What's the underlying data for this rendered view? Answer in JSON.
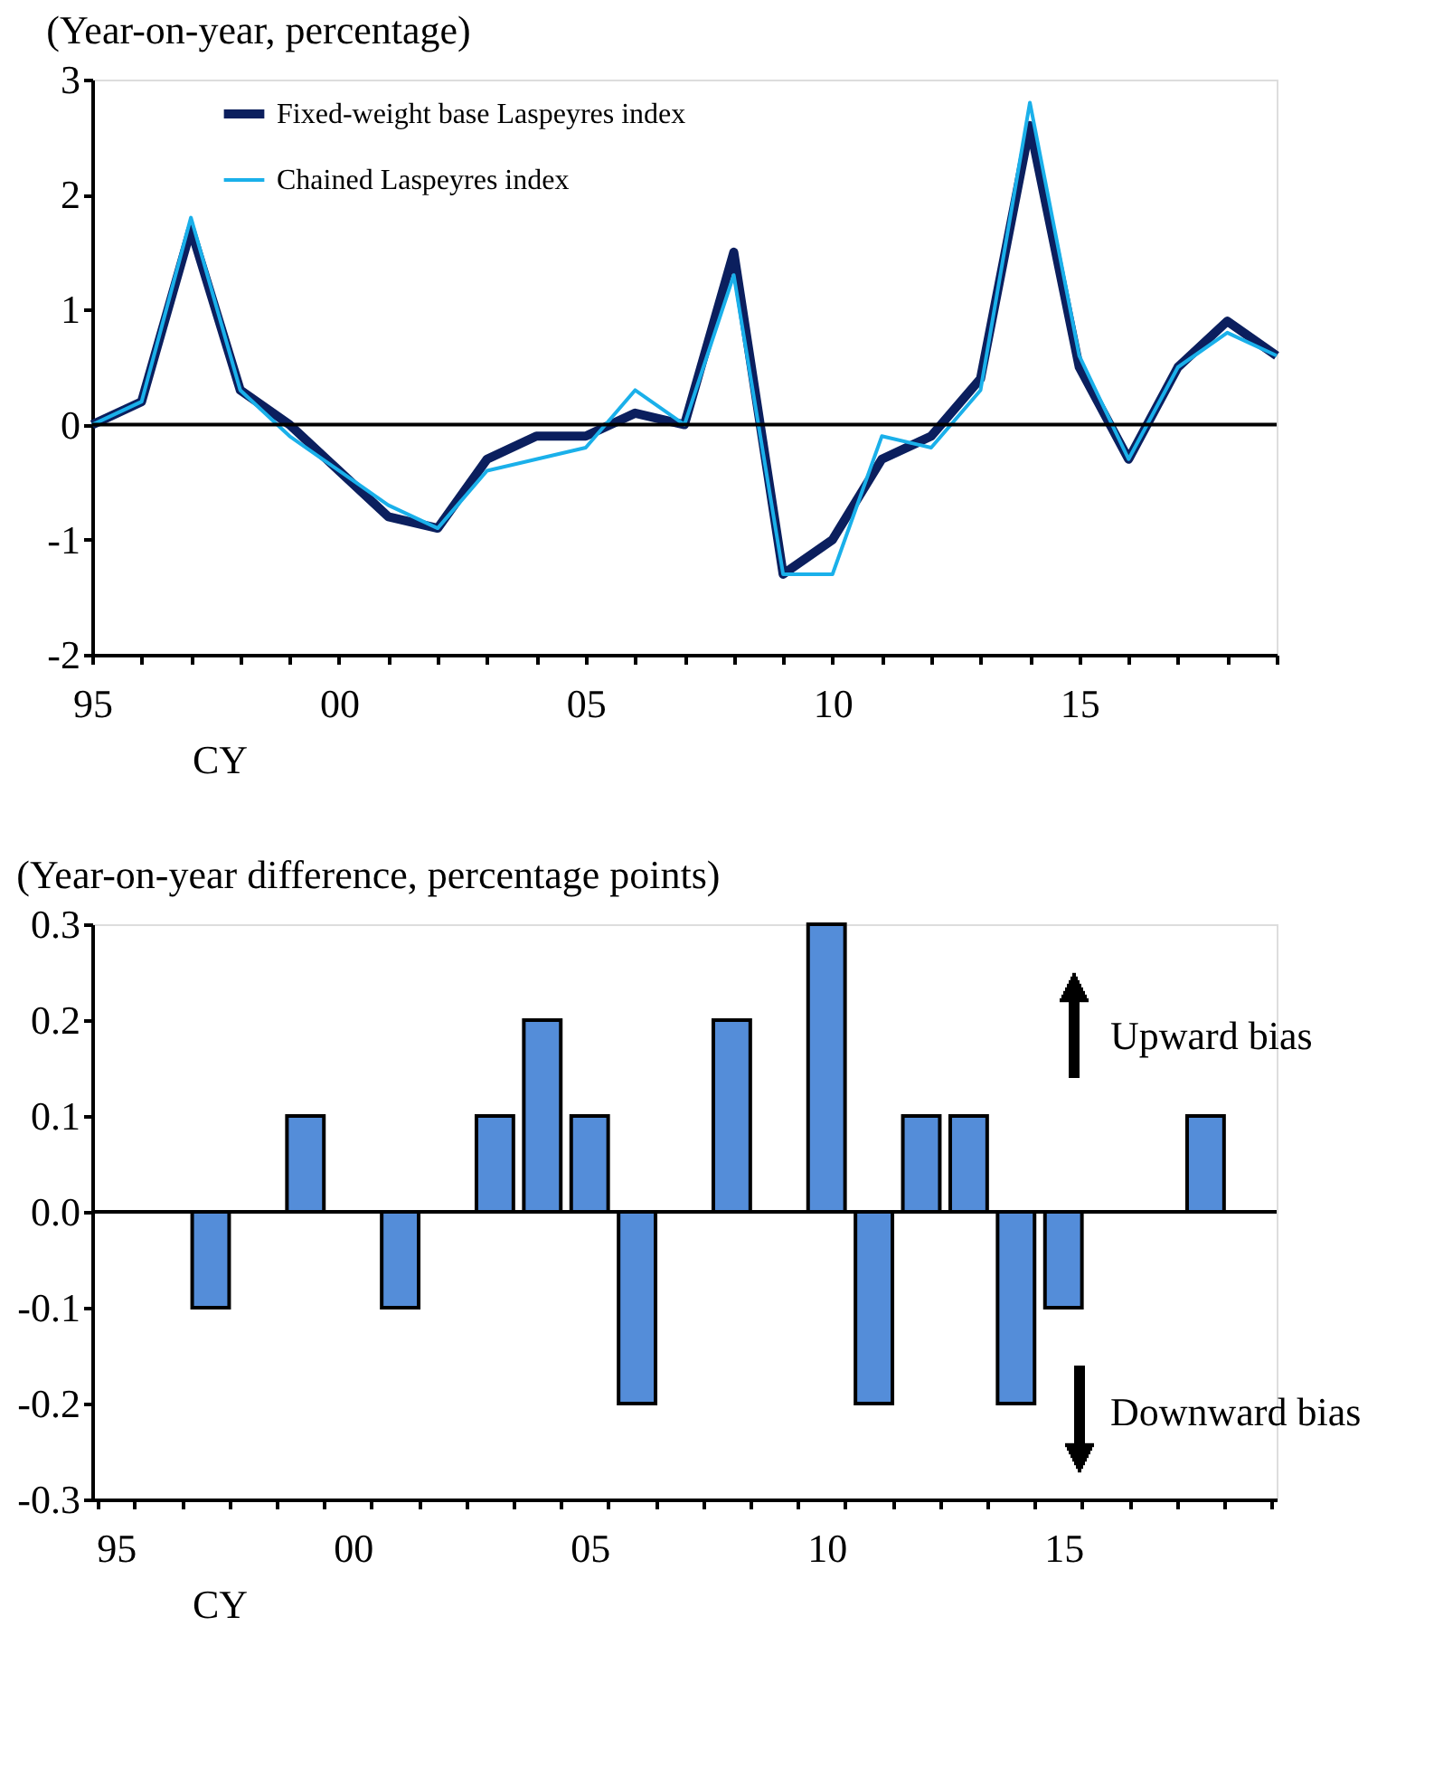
{
  "chart_data": [
    {
      "type": "line",
      "title": "(Year-on-year, percentage)",
      "xlabel": "CY",
      "x": [
        1995,
        1996,
        1997,
        1998,
        1999,
        2000,
        2001,
        2002,
        2003,
        2004,
        2005,
        2006,
        2007,
        2008,
        2009,
        2010,
        2011,
        2012,
        2013,
        2014,
        2015,
        2016,
        2017,
        2018,
        2019
      ],
      "series": [
        {
          "name": "Fixed-weight base Laspeyres index",
          "color": "#0b1f5e",
          "values": [
            0,
            0.2,
            1.7,
            0.3,
            0.0,
            -0.4,
            -0.8,
            -0.9,
            -0.3,
            -0.1,
            -0.1,
            0.1,
            0.0,
            1.5,
            -1.3,
            -1.0,
            -0.3,
            -0.1,
            0.4,
            2.6,
            0.5,
            -0.3,
            0.5,
            0.9,
            0.6
          ]
        },
        {
          "name": "Chained Laspeyres index",
          "color": "#1ab0ea",
          "values": [
            0,
            0.2,
            1.8,
            0.3,
            -0.1,
            -0.4,
            -0.7,
            -0.9,
            -0.4,
            -0.3,
            -0.2,
            0.3,
            0.0,
            1.3,
            -1.3,
            -1.3,
            -0.1,
            -0.2,
            0.3,
            2.8,
            0.6,
            -0.3,
            0.5,
            0.8,
            0.6
          ]
        }
      ],
      "xlim": [
        1995,
        2019
      ],
      "xticks": [
        {
          "value": 1995,
          "label": "95"
        },
        {
          "value": 1996,
          "label": null
        },
        {
          "value": 1997,
          "label": null
        },
        {
          "value": 1998,
          "label": null
        },
        {
          "value": 1999,
          "label": null
        },
        {
          "value": 2000,
          "label": "00"
        },
        {
          "value": 2001,
          "label": null
        },
        {
          "value": 2002,
          "label": null
        },
        {
          "value": 2003,
          "label": null
        },
        {
          "value": 2004,
          "label": null
        },
        {
          "value": 2005,
          "label": "05"
        },
        {
          "value": 2006,
          "label": null
        },
        {
          "value": 2007,
          "label": null
        },
        {
          "value": 2008,
          "label": null
        },
        {
          "value": 2009,
          "label": null
        },
        {
          "value": 2010,
          "label": "10"
        },
        {
          "value": 2011,
          "label": null
        },
        {
          "value": 2012,
          "label": null
        },
        {
          "value": 2013,
          "label": null
        },
        {
          "value": 2014,
          "label": null
        },
        {
          "value": 2015,
          "label": "15"
        },
        {
          "value": 2016,
          "label": null
        },
        {
          "value": 2017,
          "label": null
        },
        {
          "value": 2018,
          "label": null
        },
        {
          "value": 2019,
          "label": null
        }
      ],
      "ylim": [
        -2,
        3
      ],
      "yticks": [
        -2,
        -1,
        0,
        1,
        2,
        3
      ],
      "ref_lines": [
        {
          "axis": "y",
          "value": 0,
          "color": "#000000"
        }
      ],
      "grid": false,
      "legend": "top left",
      "marker": "none",
      "line_style": "solid"
    },
    {
      "type": "bar",
      "title": "(Year-on-year difference, percentage points)",
      "xlabel": "CY",
      "categories": [
        "95",
        null,
        null,
        null,
        null,
        "00",
        null,
        null,
        null,
        null,
        "05",
        null,
        null,
        null,
        null,
        "10",
        null,
        null,
        null,
        null,
        "15",
        null,
        null,
        null,
        null
      ],
      "values": [
        0,
        0,
        -0.1,
        0,
        0.1,
        0,
        -0.1,
        0,
        0.1,
        0.2,
        0.1,
        -0.2,
        0,
        0.2,
        0,
        0.3,
        -0.2,
        0.1,
        0.1,
        -0.2,
        -0.1,
        0,
        0,
        0.1,
        0
      ],
      "color": "#548dd9",
      "ylim": [
        -0.3,
        0.3
      ],
      "yticks": [
        {
          "value": -0.3,
          "label": "-0.3"
        },
        {
          "value": -0.2,
          "label": "-0.2"
        },
        {
          "value": -0.1,
          "label": "-0.1"
        },
        {
          "value": 0,
          "label": "0.0"
        },
        {
          "value": 0.1,
          "label": "0.1"
        },
        {
          "value": 0.2,
          "label": "0.2"
        },
        {
          "value": 0.3,
          "label": "0.3"
        }
      ],
      "ref_lines": [
        {
          "axis": "y",
          "value": 0,
          "color": "#000000"
        }
      ],
      "annotations": [
        "Upward bias",
        "Downward bias"
      ],
      "grid": false
    }
  ]
}
